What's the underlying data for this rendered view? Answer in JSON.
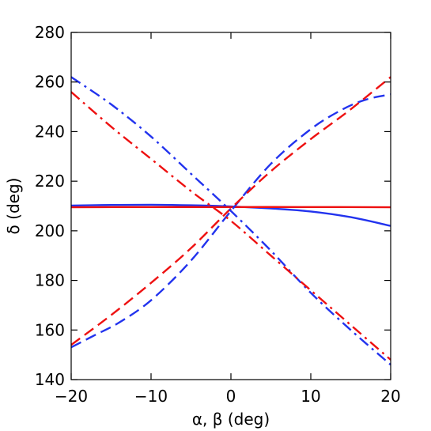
{
  "chart_data": {
    "type": "line",
    "xlabel": "α, β (deg)",
    "ylabel": "δ (deg)",
    "xlim": [
      -20,
      20
    ],
    "ylim": [
      140,
      280
    ],
    "xticks": [
      -20,
      -10,
      0,
      10,
      20
    ],
    "yticks": [
      140,
      160,
      180,
      200,
      220,
      240,
      260,
      280
    ],
    "xtick_labels": [
      "−20",
      "−10",
      "0",
      "10",
      "20"
    ],
    "ytick_labels": [
      "140",
      "160",
      "180",
      "200",
      "220",
      "240",
      "260",
      "280"
    ],
    "grid": false,
    "legend": false,
    "series": [
      {
        "color": "#2233ee",
        "style": "solid",
        "x": [
          -20,
          -15,
          -10,
          -5,
          0,
          5,
          10,
          15,
          20
        ],
        "y": [
          210.2,
          210.4,
          210.5,
          210.3,
          209.8,
          209.0,
          207.8,
          205.5,
          202.0
        ]
      },
      {
        "color": "#ee1111",
        "style": "solid",
        "x": [
          -20,
          -10,
          0,
          10,
          20
        ],
        "y": [
          209.5,
          209.6,
          209.6,
          209.6,
          209.5
        ]
      },
      {
        "color": "#2233ee",
        "style": "dashed",
        "x": [
          -20,
          -17,
          -14,
          -10,
          -5,
          0,
          5,
          10,
          14,
          17,
          20
        ],
        "y": [
          153,
          158,
          163,
          172,
          188,
          208,
          227,
          241,
          249,
          253,
          255
        ]
      },
      {
        "color": "#ee1111",
        "style": "dashed",
        "x": [
          -20,
          -15,
          -10,
          -5,
          0,
          5,
          10,
          15,
          20
        ],
        "y": [
          154,
          166,
          179,
          193,
          209,
          224,
          237,
          249,
          262
        ]
      },
      {
        "color": "#2233ee",
        "style": "dashdot",
        "x": [
          -20,
          -15,
          -10,
          -5,
          0,
          5,
          10,
          15,
          20
        ],
        "y": [
          262,
          251,
          238,
          223,
          208,
          192,
          175,
          160,
          146
        ]
      },
      {
        "color": "#ee1111",
        "style": "dashdot",
        "x": [
          -20,
          -15,
          -10,
          -5,
          0,
          5,
          10,
          15,
          20
        ],
        "y": [
          256,
          242,
          229,
          216,
          204,
          190,
          176,
          162,
          148
        ]
      }
    ]
  }
}
